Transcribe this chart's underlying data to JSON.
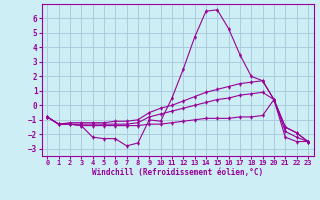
{
  "background_color": "#cceef4",
  "grid_color": "#aaccdd",
  "line_color": "#990099",
  "xlabel": "Windchill (Refroidissement éolien,°C)",
  "xlim": [
    -0.5,
    23.5
  ],
  "ylim": [
    -3.5,
    7.0
  ],
  "yticks": [
    -3,
    -2,
    -1,
    0,
    1,
    2,
    3,
    4,
    5,
    6
  ],
  "xticks": [
    0,
    1,
    2,
    3,
    4,
    5,
    6,
    7,
    8,
    9,
    10,
    11,
    12,
    13,
    14,
    15,
    16,
    17,
    18,
    19,
    20,
    21,
    22,
    23
  ],
  "series": [
    {
      "x": [
        0,
        1,
        2,
        3,
        4,
        5,
        6,
        7,
        8,
        9,
        10,
        11,
        12,
        13,
        14,
        15,
        16,
        17,
        18,
        19,
        20,
        21,
        22,
        23
      ],
      "y": [
        -0.8,
        -1.3,
        -1.3,
        -1.4,
        -2.2,
        -2.3,
        -2.3,
        -2.8,
        -2.6,
        -1.0,
        -1.1,
        0.5,
        2.5,
        4.7,
        6.5,
        6.6,
        5.3,
        3.5,
        2.0,
        1.7,
        0.4,
        -2.2,
        -2.5,
        -2.5
      ]
    },
    {
      "x": [
        0,
        1,
        2,
        3,
        4,
        5,
        6,
        7,
        8,
        9,
        10,
        11,
        12,
        13,
        14,
        15,
        16,
        17,
        18,
        19,
        20,
        21,
        22,
        23
      ],
      "y": [
        -0.8,
        -1.3,
        -1.2,
        -1.2,
        -1.2,
        -1.2,
        -1.1,
        -1.1,
        -1.0,
        -0.5,
        -0.2,
        0.0,
        0.3,
        0.6,
        0.9,
        1.1,
        1.3,
        1.5,
        1.6,
        1.7,
        0.4,
        -1.8,
        -2.2,
        -2.5
      ]
    },
    {
      "x": [
        0,
        1,
        2,
        3,
        4,
        5,
        6,
        7,
        8,
        9,
        10,
        11,
        12,
        13,
        14,
        15,
        16,
        17,
        18,
        19,
        20,
        21,
        22,
        23
      ],
      "y": [
        -0.8,
        -1.3,
        -1.3,
        -1.3,
        -1.3,
        -1.3,
        -1.3,
        -1.3,
        -1.2,
        -0.8,
        -0.6,
        -0.4,
        -0.2,
        0.0,
        0.2,
        0.4,
        0.5,
        0.7,
        0.8,
        0.9,
        0.4,
        -1.5,
        -1.9,
        -2.5
      ]
    },
    {
      "x": [
        0,
        1,
        2,
        3,
        4,
        5,
        6,
        7,
        8,
        9,
        10,
        11,
        12,
        13,
        14,
        15,
        16,
        17,
        18,
        19,
        20,
        21,
        22,
        23
      ],
      "y": [
        -0.8,
        -1.3,
        -1.3,
        -1.4,
        -1.4,
        -1.4,
        -1.4,
        -1.4,
        -1.4,
        -1.3,
        -1.3,
        -1.2,
        -1.1,
        -1.0,
        -0.9,
        -0.9,
        -0.9,
        -0.8,
        -0.8,
        -0.7,
        0.4,
        -1.5,
        -1.9,
        -2.5
      ]
    }
  ]
}
